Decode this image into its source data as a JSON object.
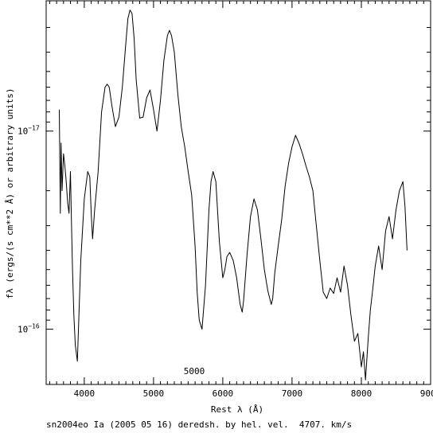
{
  "chart_data": {
    "type": "line",
    "title": "",
    "footer": "sn2004eo Ia (2005 05 16) deredsh. by hel. vel.  4707. km/s",
    "xlabel": "Rest λ (Å)",
    "ylabel": "fλ (ergs/(s cm**2 Å) or arbitrary units)",
    "annotation": "5000",
    "xlim": [
      3450,
      9000
    ],
    "ylim": [
      1.9e-16,
      2.2e-18
    ],
    "y_scale": "log",
    "y_inverted": true,
    "x_ticks": [
      {
        "value": 4000,
        "label": "4000"
      },
      {
        "value": 5000,
        "label": "5000"
      },
      {
        "value": 6000,
        "label": "6000"
      },
      {
        "value": 7000,
        "label": "7000"
      },
      {
        "value": 8000,
        "label": "8000"
      },
      {
        "value": 9000,
        "label": "9000"
      }
    ],
    "y_ticks": [
      {
        "value": 1e-17,
        "base": "10",
        "exp": "−17"
      },
      {
        "value": 1e-16,
        "base": "10",
        "exp": "−16"
      }
    ],
    "series": [
      {
        "x": [
          3640,
          3655,
          3665,
          3680,
          3700,
          3720,
          3740,
          3760,
          3780,
          3800,
          3815,
          3830,
          3850,
          3870,
          3900,
          3950,
          4000,
          4050,
          4080,
          4100,
          4120,
          4150,
          4200,
          4250,
          4300,
          4330,
          4360,
          4400,
          4450,
          4500,
          4550,
          4600,
          4630,
          4660,
          4690,
          4720,
          4750,
          4800,
          4850,
          4900,
          4950,
          5000,
          5050,
          5100,
          5150,
          5200,
          5230,
          5260,
          5300,
          5350,
          5400,
          5450,
          5500,
          5550,
          5600,
          5630,
          5660,
          5700,
          5750,
          5800,
          5830,
          5860,
          5900,
          5950,
          6000,
          6030,
          6060,
          6100,
          6150,
          6200,
          6250,
          6280,
          6300,
          6350,
          6400,
          6450,
          6500,
          6550,
          6600,
          6650,
          6700,
          6720,
          6750,
          6800,
          6850,
          6900,
          6950,
          7000,
          7050,
          7100,
          7150,
          7200,
          7250,
          7300,
          7350,
          7400,
          7450,
          7500,
          7550,
          7600,
          7650,
          7700,
          7750,
          7800,
          7850,
          7900,
          7950,
          8000,
          8030,
          8060,
          8100,
          8130,
          8160,
          8200,
          8250,
          8300,
          8350,
          8400,
          8450,
          8500,
          8550,
          8600,
          8630,
          8660
        ],
        "y": [
          7.8e-18,
          2.6e-17,
          1.15e-17,
          2e-17,
          1.3e-17,
          1.5e-17,
          1.8e-17,
          2.3e-17,
          2.6e-17,
          1.6e-17,
          2.9e-17,
          5e-17,
          8.5e-17,
          1.2e-16,
          1.45e-16,
          4.5e-17,
          2.2e-17,
          1.6e-17,
          1.7e-17,
          2.6e-17,
          3.5e-17,
          2.5e-17,
          1.6e-17,
          8e-18,
          6e-18,
          5.8e-18,
          6e-18,
          7.5e-18,
          9.5e-18,
          8.5e-18,
          6e-18,
          3.6e-18,
          2.7e-18,
          2.45e-18,
          2.55e-18,
          3.4e-18,
          5.5e-18,
          8.6e-18,
          8.5e-18,
          6.8e-18,
          6.2e-18,
          7.8e-18,
          1e-17,
          7e-18,
          4.4e-18,
          3.3e-18,
          3.1e-18,
          3.3e-18,
          4e-18,
          6.5e-18,
          9.5e-18,
          1.2e-17,
          1.6e-17,
          2.1e-17,
          3.8e-17,
          6.5e-17,
          9e-17,
          1e-16,
          6e-17,
          2.5e-17,
          1.8e-17,
          1.6e-17,
          1.8e-17,
          3.6e-17,
          5.5e-17,
          5e-17,
          4.3e-17,
          4.1e-17,
          4.5e-17,
          5.5e-17,
          7.5e-17,
          8.2e-17,
          7.2e-17,
          4.2e-17,
          2.7e-17,
          2.2e-17,
          2.5e-17,
          3.5e-17,
          5e-17,
          6.4e-17,
          7.5e-17,
          7e-17,
          5.2e-17,
          3.8e-17,
          2.8e-17,
          1.9e-17,
          1.45e-17,
          1.2e-17,
          1.05e-17,
          1.15e-17,
          1.3e-17,
          1.5e-17,
          1.7e-17,
          2e-17,
          3e-17,
          4.5e-17,
          6.5e-17,
          7e-17,
          6.2e-17,
          6.6e-17,
          5.5e-17,
          6.5e-17,
          4.8e-17,
          6e-17,
          8.5e-17,
          1.15e-16,
          1.05e-16,
          1.55e-16,
          1.3e-16,
          1.8e-16,
          1.1e-16,
          8e-17,
          6.5e-17,
          4.8e-17,
          3.8e-17,
          5e-17,
          3.2e-17,
          2.7e-17,
          3.5e-17,
          2.5e-17,
          2e-17,
          1.8e-17,
          2.4e-17,
          4e-17
        ]
      }
    ]
  }
}
